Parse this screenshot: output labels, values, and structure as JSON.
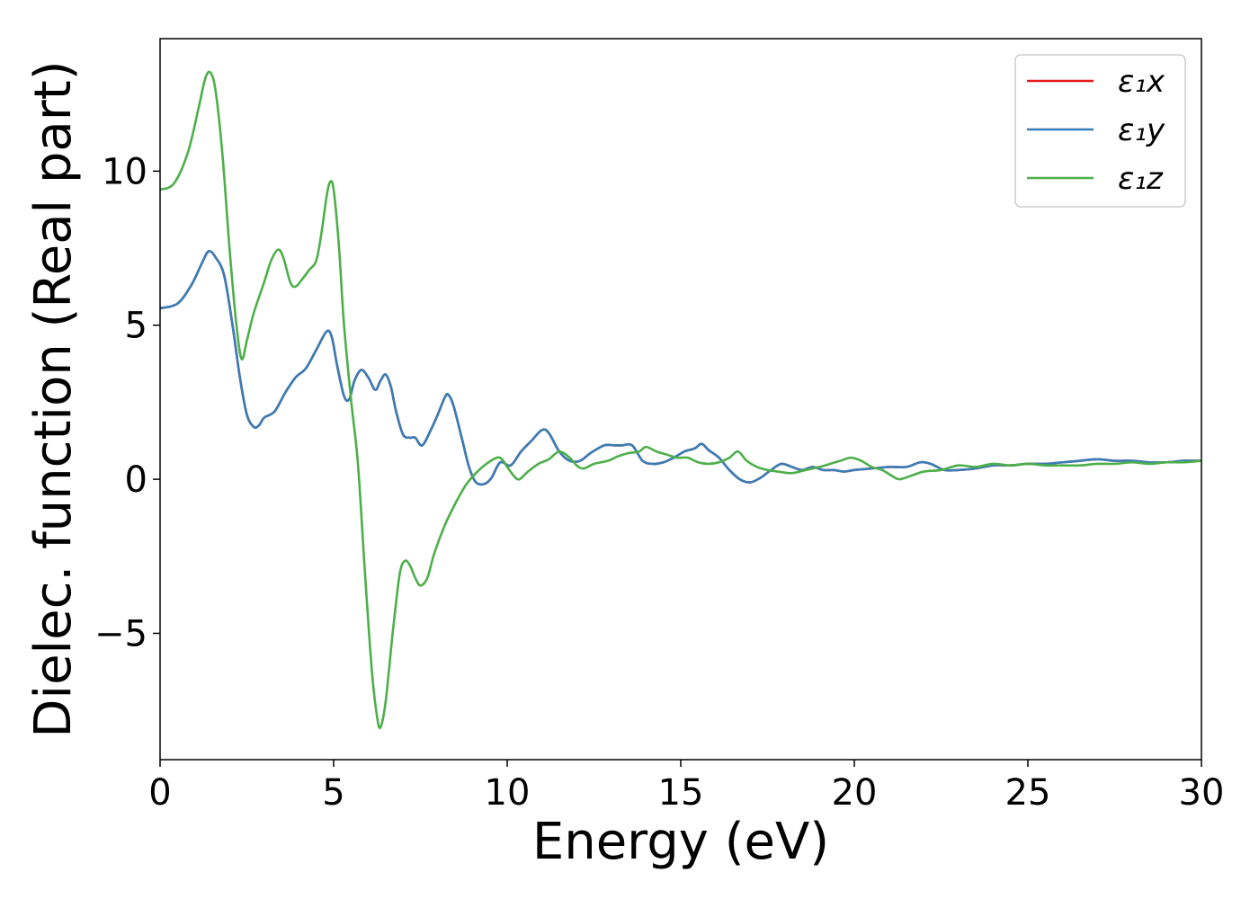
{
  "chart_data": {
    "type": "line",
    "xlabel": "Energy (eV)",
    "ylabel": "Dielec. function (Real part)",
    "xlim": [
      0,
      30
    ],
    "ylim": [
      -9.1,
      14.3
    ],
    "xticks": [
      0,
      5,
      10,
      15,
      20,
      25,
      30
    ],
    "yticks": [
      -5,
      0,
      5,
      10
    ],
    "ytick_labels": [
      "−5",
      "0",
      "5",
      "10"
    ],
    "grid": false,
    "legend_position": "top-right",
    "series": [
      {
        "name": "ε₁x",
        "color": "#e41a1c",
        "points": [
          [
            0,
            5.55
          ],
          [
            0.5,
            5.7
          ],
          [
            0.9,
            6.3
          ],
          [
            1.2,
            7.0
          ],
          [
            1.4,
            7.4
          ],
          [
            1.6,
            7.2
          ],
          [
            1.85,
            6.6
          ],
          [
            2.1,
            4.9
          ],
          [
            2.3,
            3.3
          ],
          [
            2.5,
            2.1
          ],
          [
            2.7,
            1.7
          ],
          [
            2.85,
            1.75
          ],
          [
            3.0,
            2.0
          ],
          [
            3.3,
            2.2
          ],
          [
            3.6,
            2.8
          ],
          [
            3.9,
            3.3
          ],
          [
            4.2,
            3.6
          ],
          [
            4.5,
            4.2
          ],
          [
            4.8,
            4.8
          ],
          [
            4.95,
            4.6
          ],
          [
            5.1,
            3.7
          ],
          [
            5.3,
            2.7
          ],
          [
            5.45,
            2.6
          ],
          [
            5.6,
            3.2
          ],
          [
            5.8,
            3.55
          ],
          [
            6.0,
            3.3
          ],
          [
            6.2,
            2.9
          ],
          [
            6.35,
            3.2
          ],
          [
            6.5,
            3.4
          ],
          [
            6.65,
            3.0
          ],
          [
            6.8,
            2.2
          ],
          [
            7.0,
            1.45
          ],
          [
            7.2,
            1.35
          ],
          [
            7.35,
            1.35
          ],
          [
            7.55,
            1.1
          ],
          [
            7.8,
            1.6
          ],
          [
            8.0,
            2.1
          ],
          [
            8.2,
            2.65
          ],
          [
            8.3,
            2.75
          ],
          [
            8.45,
            2.4
          ],
          [
            8.7,
            1.3
          ],
          [
            8.9,
            0.4
          ],
          [
            9.1,
            -0.1
          ],
          [
            9.35,
            -0.15
          ],
          [
            9.55,
            0.05
          ],
          [
            9.8,
            0.55
          ],
          [
            10.1,
            0.45
          ],
          [
            10.4,
            0.9
          ],
          [
            10.7,
            1.25
          ],
          [
            11.0,
            1.6
          ],
          [
            11.2,
            1.5
          ],
          [
            11.5,
            0.9
          ],
          [
            11.8,
            0.6
          ],
          [
            12.1,
            0.6
          ],
          [
            12.4,
            0.85
          ],
          [
            12.8,
            1.1
          ],
          [
            13.1,
            1.1
          ],
          [
            13.3,
            1.1
          ],
          [
            13.6,
            1.1
          ],
          [
            13.9,
            0.6
          ],
          [
            14.2,
            0.5
          ],
          [
            14.5,
            0.55
          ],
          [
            14.8,
            0.7
          ],
          [
            15.1,
            0.9
          ],
          [
            15.4,
            1.0
          ],
          [
            15.6,
            1.15
          ],
          [
            15.8,
            0.95
          ],
          [
            16.1,
            0.7
          ],
          [
            16.4,
            0.3
          ],
          [
            16.7,
            0.0
          ],
          [
            17.0,
            -0.1
          ],
          [
            17.3,
            0.05
          ],
          [
            17.6,
            0.3
          ],
          [
            17.9,
            0.5
          ],
          [
            18.2,
            0.4
          ],
          [
            18.5,
            0.3
          ],
          [
            18.8,
            0.4
          ],
          [
            19.1,
            0.3
          ],
          [
            19.4,
            0.3
          ],
          [
            19.7,
            0.25
          ],
          [
            20.0,
            0.3
          ],
          [
            20.5,
            0.35
          ],
          [
            21.0,
            0.4
          ],
          [
            21.5,
            0.4
          ],
          [
            21.9,
            0.55
          ],
          [
            22.2,
            0.5
          ],
          [
            22.6,
            0.3
          ],
          [
            23.0,
            0.3
          ],
          [
            23.5,
            0.35
          ],
          [
            24.0,
            0.45
          ],
          [
            24.5,
            0.45
          ],
          [
            25.0,
            0.5
          ],
          [
            25.5,
            0.5
          ],
          [
            26.0,
            0.55
          ],
          [
            26.5,
            0.6
          ],
          [
            27.0,
            0.65
          ],
          [
            27.5,
            0.6
          ],
          [
            28.0,
            0.6
          ],
          [
            28.5,
            0.55
          ],
          [
            29.0,
            0.55
          ],
          [
            29.5,
            0.6
          ],
          [
            30.0,
            0.6
          ]
        ]
      },
      {
        "name": "ε₁y",
        "color": "#377eb8",
        "points": [
          [
            0,
            5.55
          ],
          [
            0.5,
            5.7
          ],
          [
            0.9,
            6.3
          ],
          [
            1.2,
            7.0
          ],
          [
            1.4,
            7.4
          ],
          [
            1.6,
            7.2
          ],
          [
            1.85,
            6.6
          ],
          [
            2.1,
            4.9
          ],
          [
            2.3,
            3.3
          ],
          [
            2.5,
            2.1
          ],
          [
            2.7,
            1.7
          ],
          [
            2.85,
            1.75
          ],
          [
            3.0,
            2.0
          ],
          [
            3.3,
            2.2
          ],
          [
            3.6,
            2.8
          ],
          [
            3.9,
            3.3
          ],
          [
            4.2,
            3.6
          ],
          [
            4.5,
            4.2
          ],
          [
            4.8,
            4.8
          ],
          [
            4.95,
            4.6
          ],
          [
            5.1,
            3.7
          ],
          [
            5.3,
            2.7
          ],
          [
            5.45,
            2.6
          ],
          [
            5.6,
            3.2
          ],
          [
            5.8,
            3.55
          ],
          [
            6.0,
            3.3
          ],
          [
            6.2,
            2.9
          ],
          [
            6.35,
            3.2
          ],
          [
            6.5,
            3.4
          ],
          [
            6.65,
            3.0
          ],
          [
            6.8,
            2.2
          ],
          [
            7.0,
            1.45
          ],
          [
            7.2,
            1.35
          ],
          [
            7.35,
            1.35
          ],
          [
            7.55,
            1.1
          ],
          [
            7.8,
            1.6
          ],
          [
            8.0,
            2.1
          ],
          [
            8.2,
            2.65
          ],
          [
            8.3,
            2.75
          ],
          [
            8.45,
            2.4
          ],
          [
            8.7,
            1.3
          ],
          [
            8.9,
            0.4
          ],
          [
            9.1,
            -0.1
          ],
          [
            9.35,
            -0.15
          ],
          [
            9.55,
            0.05
          ],
          [
            9.8,
            0.55
          ],
          [
            10.1,
            0.45
          ],
          [
            10.4,
            0.9
          ],
          [
            10.7,
            1.25
          ],
          [
            11.0,
            1.6
          ],
          [
            11.2,
            1.5
          ],
          [
            11.5,
            0.9
          ],
          [
            11.8,
            0.6
          ],
          [
            12.1,
            0.6
          ],
          [
            12.4,
            0.85
          ],
          [
            12.8,
            1.1
          ],
          [
            13.1,
            1.1
          ],
          [
            13.3,
            1.1
          ],
          [
            13.6,
            1.1
          ],
          [
            13.9,
            0.6
          ],
          [
            14.2,
            0.5
          ],
          [
            14.5,
            0.55
          ],
          [
            14.8,
            0.7
          ],
          [
            15.1,
            0.9
          ],
          [
            15.4,
            1.0
          ],
          [
            15.6,
            1.15
          ],
          [
            15.8,
            0.95
          ],
          [
            16.1,
            0.7
          ],
          [
            16.4,
            0.3
          ],
          [
            16.7,
            0.0
          ],
          [
            17.0,
            -0.1
          ],
          [
            17.3,
            0.05
          ],
          [
            17.6,
            0.3
          ],
          [
            17.9,
            0.5
          ],
          [
            18.2,
            0.4
          ],
          [
            18.5,
            0.3
          ],
          [
            18.8,
            0.4
          ],
          [
            19.1,
            0.3
          ],
          [
            19.4,
            0.3
          ],
          [
            19.7,
            0.25
          ],
          [
            20.0,
            0.3
          ],
          [
            20.5,
            0.35
          ],
          [
            21.0,
            0.4
          ],
          [
            21.5,
            0.4
          ],
          [
            21.9,
            0.55
          ],
          [
            22.2,
            0.5
          ],
          [
            22.6,
            0.3
          ],
          [
            23.0,
            0.3
          ],
          [
            23.5,
            0.35
          ],
          [
            24.0,
            0.45
          ],
          [
            24.5,
            0.45
          ],
          [
            25.0,
            0.5
          ],
          [
            25.5,
            0.5
          ],
          [
            26.0,
            0.55
          ],
          [
            26.5,
            0.6
          ],
          [
            27.0,
            0.65
          ],
          [
            27.5,
            0.6
          ],
          [
            28.0,
            0.6
          ],
          [
            28.5,
            0.55
          ],
          [
            29.0,
            0.55
          ],
          [
            29.5,
            0.6
          ],
          [
            30.0,
            0.6
          ]
        ]
      },
      {
        "name": "ε₁z",
        "color": "#4daf4a",
        "points": [
          [
            0,
            9.4
          ],
          [
            0.4,
            9.6
          ],
          [
            0.8,
            10.6
          ],
          [
            1.1,
            12.0
          ],
          [
            1.3,
            13.0
          ],
          [
            1.45,
            13.2
          ],
          [
            1.6,
            12.6
          ],
          [
            1.8,
            10.5
          ],
          [
            2.0,
            7.5
          ],
          [
            2.2,
            5.0
          ],
          [
            2.35,
            3.9
          ],
          [
            2.5,
            4.5
          ],
          [
            2.7,
            5.4
          ],
          [
            3.0,
            6.4
          ],
          [
            3.2,
            7.1
          ],
          [
            3.4,
            7.45
          ],
          [
            3.55,
            7.2
          ],
          [
            3.75,
            6.4
          ],
          [
            3.9,
            6.25
          ],
          [
            4.1,
            6.5
          ],
          [
            4.3,
            6.8
          ],
          [
            4.5,
            7.1
          ],
          [
            4.65,
            8.0
          ],
          [
            4.8,
            9.2
          ],
          [
            4.9,
            9.65
          ],
          [
            5.0,
            9.4
          ],
          [
            5.15,
            7.6
          ],
          [
            5.3,
            5.0
          ],
          [
            5.5,
            2.6
          ],
          [
            5.7,
            0.5
          ],
          [
            5.9,
            -3.0
          ],
          [
            6.1,
            -6.2
          ],
          [
            6.25,
            -7.7
          ],
          [
            6.35,
            -8.05
          ],
          [
            6.5,
            -7.2
          ],
          [
            6.7,
            -5.0
          ],
          [
            6.9,
            -3.1
          ],
          [
            7.05,
            -2.65
          ],
          [
            7.2,
            -2.8
          ],
          [
            7.35,
            -3.2
          ],
          [
            7.5,
            -3.45
          ],
          [
            7.7,
            -3.2
          ],
          [
            7.9,
            -2.4
          ],
          [
            8.2,
            -1.5
          ],
          [
            8.5,
            -0.8
          ],
          [
            8.8,
            -0.2
          ],
          [
            9.1,
            0.2
          ],
          [
            9.4,
            0.5
          ],
          [
            9.7,
            0.7
          ],
          [
            9.85,
            0.65
          ],
          [
            10.0,
            0.4
          ],
          [
            10.2,
            0.1
          ],
          [
            10.35,
            0.0
          ],
          [
            10.6,
            0.25
          ],
          [
            10.9,
            0.5
          ],
          [
            11.2,
            0.65
          ],
          [
            11.5,
            0.9
          ],
          [
            11.8,
            0.7
          ],
          [
            12.0,
            0.45
          ],
          [
            12.2,
            0.35
          ],
          [
            12.5,
            0.5
          ],
          [
            12.9,
            0.6
          ],
          [
            13.2,
            0.75
          ],
          [
            13.5,
            0.85
          ],
          [
            13.8,
            0.9
          ],
          [
            14.0,
            1.05
          ],
          [
            14.3,
            0.9
          ],
          [
            14.6,
            0.8
          ],
          [
            14.9,
            0.7
          ],
          [
            15.2,
            0.7
          ],
          [
            15.5,
            0.55
          ],
          [
            15.8,
            0.5
          ],
          [
            16.1,
            0.55
          ],
          [
            16.4,
            0.7
          ],
          [
            16.65,
            0.9
          ],
          [
            16.9,
            0.6
          ],
          [
            17.2,
            0.4
          ],
          [
            17.5,
            0.3
          ],
          [
            17.8,
            0.25
          ],
          [
            18.2,
            0.2
          ],
          [
            18.6,
            0.3
          ],
          [
            19.0,
            0.4
          ],
          [
            19.3,
            0.5
          ],
          [
            19.6,
            0.6
          ],
          [
            19.9,
            0.7
          ],
          [
            20.2,
            0.6
          ],
          [
            20.5,
            0.4
          ],
          [
            20.8,
            0.3
          ],
          [
            21.1,
            0.1
          ],
          [
            21.3,
            0.0
          ],
          [
            21.6,
            0.1
          ],
          [
            22.0,
            0.25
          ],
          [
            22.5,
            0.3
          ],
          [
            23.0,
            0.45
          ],
          [
            23.5,
            0.4
          ],
          [
            24.0,
            0.5
          ],
          [
            24.5,
            0.45
          ],
          [
            25.0,
            0.5
          ],
          [
            25.5,
            0.45
          ],
          [
            26.0,
            0.45
          ],
          [
            26.5,
            0.45
          ],
          [
            27.0,
            0.5
          ],
          [
            27.5,
            0.5
          ],
          [
            28.0,
            0.55
          ],
          [
            28.5,
            0.5
          ],
          [
            29.0,
            0.55
          ],
          [
            29.5,
            0.55
          ],
          [
            30.0,
            0.6
          ]
        ]
      }
    ]
  }
}
